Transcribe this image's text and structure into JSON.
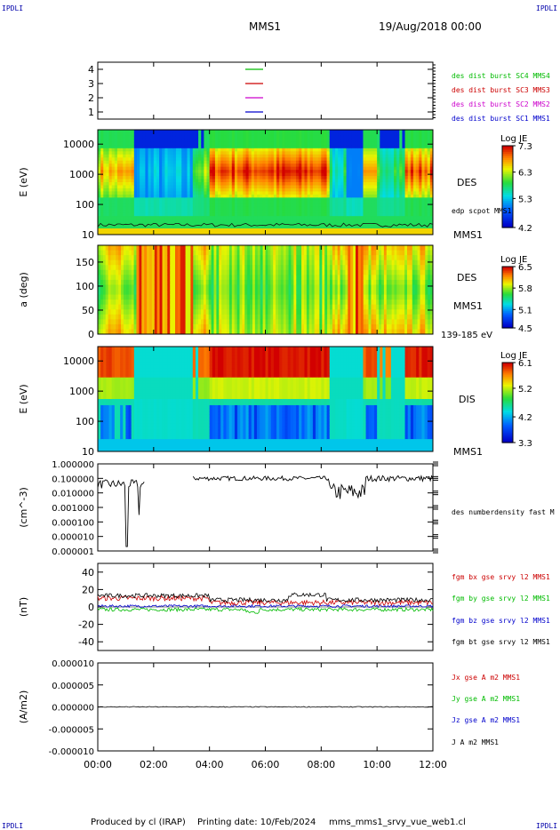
{
  "header": {
    "corner_label": "IPDLI",
    "spacecraft": "MMS1",
    "date": "19/Aug/2018 00:00"
  },
  "footer": {
    "produced_by": "Produced by cl (IRAP)",
    "printing_date": "Printing date: 10/Feb/2024",
    "product": "mms_mms1_srvy_vue_web1.cl"
  },
  "colors": {
    "c1": "#0000cc",
    "c2": "#cc00cc",
    "c3": "#cc0000",
    "c4": "#00bb00",
    "black": "#000000"
  },
  "chart_data": [
    {
      "type": "line",
      "ylim": [
        0.5,
        4.5
      ],
      "yticks": [
        "4",
        "3",
        "2",
        "1"
      ],
      "yticks_values": [
        4,
        3,
        2,
        1
      ],
      "legend": [
        {
          "label": "des dist burst SC1 MMS1",
          "color": "#0000cc",
          "y": 1
        },
        {
          "label": "des dist burst SC2 MMS2",
          "color": "#cc00cc",
          "y": 2
        },
        {
          "label": "des dist burst SC3 MMS3",
          "color": "#cc0000",
          "y": 3
        },
        {
          "label": "des dist burst SC4 MMS4",
          "color": "#00bb00",
          "y": 4
        }
      ]
    },
    {
      "type": "heatmap",
      "ylabel": "E (eV)",
      "yscale": "log",
      "ylim": [
        10,
        30000
      ],
      "yticks": [
        "10000",
        "1000",
        "100",
        "10"
      ],
      "yticks_values": [
        10000,
        1000,
        100,
        10
      ],
      "instrument": "DES",
      "spacecraft": "MMS1",
      "overlay_label": "edp scpot MMS1",
      "colorbar": {
        "title": "Log JE",
        "ticks": [
          "7.3",
          "6.3",
          "5.3",
          "4.2"
        ],
        "ticks_values": [
          7.3,
          6.3,
          5.3,
          4.2
        ]
      }
    },
    {
      "type": "heatmap",
      "ylabel": "a (deg)",
      "ylim": [
        0,
        185
      ],
      "yticks": [
        "150",
        "100",
        "50",
        "0"
      ],
      "yticks_values": [
        150,
        100,
        50,
        0
      ],
      "instrument": "DES",
      "spacecraft": "MMS1",
      "energy_range": "139-185 eV",
      "colorbar": {
        "title": "Log JE",
        "ticks": [
          "6.5",
          "5.8",
          "5.1",
          "4.5"
        ],
        "ticks_values": [
          6.5,
          5.8,
          5.1,
          4.5
        ]
      }
    },
    {
      "type": "heatmap",
      "ylabel": "E (eV)",
      "yscale": "log",
      "ylim": [
        10,
        30000
      ],
      "yticks": [
        "10000",
        "1000",
        "100",
        "10"
      ],
      "yticks_values": [
        10000,
        1000,
        100,
        10
      ],
      "instrument": "DIS",
      "spacecraft": "MMS1",
      "colorbar": {
        "title": "Log JE",
        "ticks": [
          "6.1",
          "5.2",
          "4.2",
          "3.3"
        ],
        "ticks_values": [
          6.1,
          5.2,
          4.2,
          3.3
        ]
      }
    },
    {
      "type": "line",
      "ylabel": "(cm^-3)",
      "yscale": "log",
      "ylim": [
        1e-06,
        1
      ],
      "yticks": [
        "1.000000",
        "0.100000",
        "0.010000",
        "0.001000",
        "0.000100",
        "0.000010",
        "0.000001"
      ],
      "yticks_values": [
        1,
        0.1,
        0.01,
        0.001,
        0.0001,
        1e-05,
        1e-06
      ],
      "series": [
        {
          "name": "des numberdensity fast M",
          "color": "#000000"
        }
      ]
    },
    {
      "type": "line",
      "ylabel": "(nT)",
      "ylim": [
        -50,
        50
      ],
      "yticks": [
        "40",
        "20",
        "0",
        "-20",
        "-40"
      ],
      "yticks_values": [
        40,
        20,
        0,
        -20,
        -40
      ],
      "series": [
        {
          "name": "fgm bx gse srvy l2 MMS1",
          "color": "#cc0000"
        },
        {
          "name": "fgm by gse srvy l2 MMS1",
          "color": "#00bb00"
        },
        {
          "name": "fgm bz gse srvy l2 MMS1",
          "color": "#0000cc"
        },
        {
          "name": "fgm bt gse srvy l2 MMS1",
          "color": "#000000"
        }
      ]
    },
    {
      "type": "line",
      "ylabel": "(A/m2)",
      "ylim": [
        -1e-05,
        1e-05
      ],
      "yticks": [
        "0.000010",
        "0.000005",
        "0.000000",
        "-0.000005",
        "-0.000010"
      ],
      "yticks_values": [
        1e-05,
        5e-06,
        0,
        -5e-06,
        -1e-05
      ],
      "series": [
        {
          "name": "Jx gse A m2 MMS1",
          "color": "#cc0000"
        },
        {
          "name": "Jy gse A m2 MMS1",
          "color": "#00bb00"
        },
        {
          "name": "Jz gse A m2 MMS1",
          "color": "#0000cc"
        },
        {
          "name": "J A m2 MMS1",
          "color": "#000000"
        }
      ]
    }
  ],
  "xaxis": {
    "ticks": [
      "00:00",
      "02:00",
      "04:00",
      "06:00",
      "08:00",
      "10:00",
      "12:00"
    ],
    "ticks_values_hours": [
      0,
      2,
      4,
      6,
      8,
      10,
      12
    ],
    "xlim_hours": [
      0,
      12
    ]
  }
}
